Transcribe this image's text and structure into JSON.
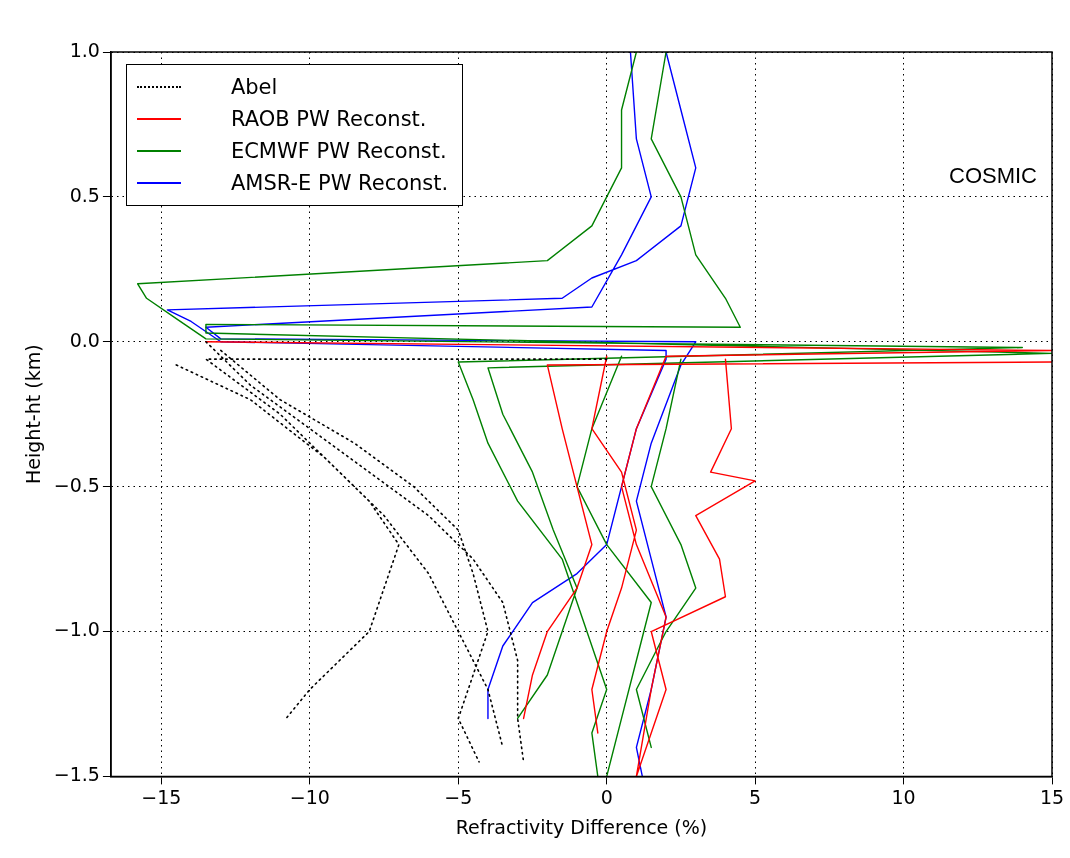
{
  "chart_data": {
    "type": "line",
    "xlabel": "Refractivity Difference (%)",
    "ylabel": "Height-ht (km)",
    "xlim": [
      -16.7,
      15
    ],
    "ylim": [
      -1.5,
      1.0
    ],
    "xticks": [
      {
        "value": -15,
        "label": "−15"
      },
      {
        "value": -10,
        "label": "−10"
      },
      {
        "value": -5,
        "label": "−5"
      },
      0,
      5,
      10,
      15
    ],
    "yticks": [
      {
        "value": -1.5,
        "label": "−1.5"
      },
      {
        "value": -1.0,
        "label": "−1.0"
      },
      {
        "value": -0.5,
        "label": "−0.5"
      },
      {
        "value": 0,
        "label": "0.0"
      },
      {
        "value": 0.5,
        "label": "0.5"
      },
      {
        "value": 1.0,
        "label": "1.0"
      }
    ],
    "grid": true,
    "legend": "top left",
    "marker": "none",
    "annotations": [
      "COSMIC"
    ],
    "series": [
      {
        "name": "Abel",
        "color": "#000000",
        "line_style": "dotted",
        "x": [
          -13.5,
          -12,
          -10,
          -8,
          -6,
          -4.5,
          -3.5,
          -3,
          -3,
          -2.8,
          null,
          -14.5,
          -12,
          -9.5,
          -8,
          -7,
          -7.5,
          -8,
          -9,
          -10,
          -10.8,
          null,
          -13,
          -11,
          -8.5,
          -6.5,
          -5,
          -4.5,
          -4,
          -4.5,
          -5,
          -4.3,
          null,
          0,
          -13.5,
          -11,
          -9,
          -7.5,
          -6,
          -5,
          -4,
          -3.5
        ],
        "values": [
          0,
          -0.15,
          -0.3,
          -0.45,
          -0.6,
          -0.75,
          -0.9,
          -1.1,
          -1.3,
          -1.45,
          null,
          -0.08,
          -0.2,
          -0.4,
          -0.55,
          -0.7,
          -0.85,
          -1.0,
          -1.1,
          -1.2,
          -1.3,
          null,
          -0.03,
          -0.2,
          -0.35,
          -0.5,
          -0.65,
          -0.8,
          -1.0,
          -1.15,
          -1.3,
          -1.45,
          null,
          -0.06,
          -0.06,
          -0.25,
          -0.45,
          -0.6,
          -0.8,
          -1.0,
          -1.2,
          -1.4
        ]
      },
      {
        "name": "RAOB PW Reconst.",
        "color": "#ff0000",
        "line_style": "solid",
        "x": [
          -13.5,
          15,
          2,
          1,
          0.5,
          1,
          2,
          1.5,
          1,
          null,
          4,
          4.2,
          3.5,
          5,
          3,
          3.8,
          4,
          1.5,
          2,
          1.5,
          1,
          null,
          15,
          -2,
          -1.5,
          -1,
          -0.5,
          -1,
          -2,
          -2.5,
          -2.8,
          null,
          0,
          -0.5,
          0.5,
          1,
          0.5,
          0,
          -0.5,
          -0.3
        ],
        "values": [
          0,
          -0.03,
          -0.05,
          -0.3,
          -0.5,
          -0.7,
          -0.95,
          -1.2,
          -1.5,
          null,
          -0.06,
          -0.3,
          -0.45,
          -0.48,
          -0.6,
          -0.75,
          -0.88,
          -1.0,
          -1.2,
          -1.35,
          -1.5,
          null,
          -0.07,
          -0.08,
          -0.3,
          -0.5,
          -0.7,
          -0.85,
          -1.0,
          -1.15,
          -1.3,
          null,
          -0.05,
          -0.3,
          -0.45,
          -0.65,
          -0.85,
          -1.0,
          -1.2,
          -1.35
        ]
      },
      {
        "name": "ECMWF PW Reconst.",
        "color": "#008000",
        "line_style": "solid",
        "x": [
          1,
          0.5,
          0.5,
          -0.5,
          -2,
          -15.8,
          -15.5,
          -14.5,
          -13.5,
          14,
          -5,
          -4.5,
          -4,
          -3,
          -1.5,
          -1,
          -0.5,
          0,
          -0.5,
          -0.3,
          null,
          2,
          1.5,
          2.5,
          3,
          4,
          4.5,
          -13.5,
          -13.5,
          15,
          -4,
          -3.5,
          -2.5,
          -1.8,
          -1,
          -1.5,
          -2,
          -3,
          null,
          0.5,
          -0.5,
          -1,
          0,
          1.5,
          1,
          0.5,
          0,
          null,
          2.5,
          2,
          1.5,
          2.5,
          3,
          2,
          1,
          1.5
        ],
        "values": [
          1,
          0.8,
          0.6,
          0.4,
          0.28,
          0.2,
          0.15,
          0.08,
          0.01,
          -0.02,
          -0.07,
          -0.2,
          -0.35,
          -0.55,
          -0.75,
          -0.9,
          -1.05,
          -1.2,
          -1.35,
          -1.5,
          null,
          1,
          0.7,
          0.5,
          0.3,
          0.15,
          0.05,
          0.06,
          0.03,
          -0.04,
          -0.09,
          -0.25,
          -0.45,
          -0.65,
          -0.85,
          -1.0,
          -1.15,
          -1.3,
          null,
          -0.05,
          -0.3,
          -0.5,
          -0.7,
          -0.9,
          -1.1,
          -1.3,
          -1.5,
          null,
          -0.06,
          -0.3,
          -0.5,
          -0.7,
          -0.85,
          -1.0,
          -1.2,
          -1.4
        ]
      },
      {
        "name": "AMSR-E PW Reconst.",
        "color": "#0000ff",
        "line_style": "solid",
        "x": [
          2,
          2.5,
          3,
          2.5,
          1,
          -0.5,
          -1.5,
          -14.8,
          -14,
          -13,
          2,
          2,
          1,
          0.5,
          0,
          -1,
          -2.5,
          -3.5,
          -4,
          -4,
          null,
          0.8,
          1,
          1.5,
          0.5,
          -0.5,
          -13.5,
          -13,
          3,
          2.5,
          1.5,
          1,
          1.5,
          2,
          1.5,
          1,
          1.2
        ],
        "values": [
          1,
          0.8,
          0.6,
          0.4,
          0.28,
          0.22,
          0.15,
          0.11,
          0.07,
          0,
          -0.03,
          -0.06,
          -0.3,
          -0.5,
          -0.7,
          -0.8,
          -0.9,
          -1.05,
          -1.2,
          -1.3,
          null,
          1,
          0.7,
          0.5,
          0.3,
          0.12,
          0.05,
          0.01,
          0,
          -0.08,
          -0.35,
          -0.55,
          -0.75,
          -0.95,
          -1.2,
          -1.4,
          -1.5
        ]
      }
    ]
  }
}
